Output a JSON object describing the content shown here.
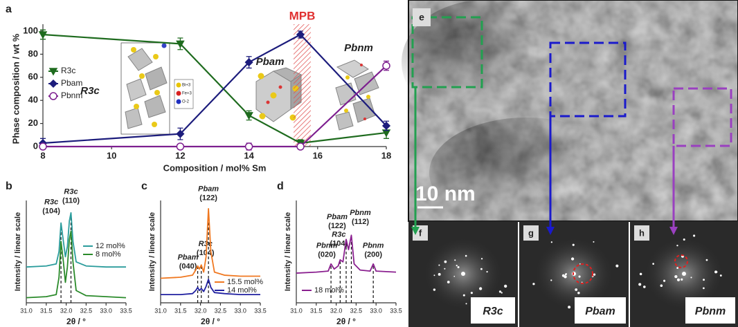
{
  "chart_data": [
    {
      "type": "line",
      "panel": "a",
      "xlabel": "Composition / mol% Sm",
      "ylabel": "Phase composition / wt %",
      "x": [
        8,
        12,
        14,
        15.5,
        18
      ],
      "xlim": [
        8,
        18
      ],
      "xticks": [
        8,
        10,
        12,
        14,
        16,
        18
      ],
      "ylim": [
        0,
        100
      ],
      "yticks": [
        0,
        20,
        40,
        60,
        80,
        100
      ],
      "grid": false,
      "legend": "center left",
      "series": [
        {
          "name": "R3c",
          "color": "#1e6b1e",
          "marker": "triangle",
          "values": [
            97,
            89,
            27,
            3,
            12
          ],
          "errors": [
            4,
            5,
            4,
            3,
            5
          ]
        },
        {
          "name": "Pbam",
          "color": "#1c1c7c",
          "marker": "diamond",
          "values": [
            3,
            11,
            73,
            97,
            18
          ],
          "errors": [
            4,
            5,
            5,
            3,
            4
          ]
        },
        {
          "name": "Pbnm",
          "color": "#7d1f8f",
          "marker": "circle",
          "values": [
            0,
            0,
            0,
            0,
            70
          ],
          "errors": [
            2,
            2,
            3,
            2,
            4
          ]
        }
      ],
      "band": {
        "label": "MPB",
        "range": [
          15.3,
          15.8
        ],
        "color": "#e03030"
      },
      "annotations": [
        "R3c",
        "Pbam",
        "Pbnm"
      ],
      "inset_legend": [
        {
          "label": "Bi+3",
          "color": "#e8c400"
        },
        {
          "label": "Fe+3",
          "color": "#d82020"
        },
        {
          "label": "O-2",
          "color": "#2030c0"
        }
      ]
    },
    {
      "type": "line",
      "panel": "b",
      "xlabel": "2θ / °",
      "ylabel": "Intensity / linear scale",
      "x": [
        31.0,
        31.5,
        31.75,
        31.82,
        31.87,
        31.93,
        31.98,
        32.03,
        32.08,
        32.12,
        32.17,
        32.25,
        32.5,
        33.0,
        33.5
      ],
      "xlim": [
        31.0,
        33.5
      ],
      "xticks": [
        {
          "value": 31,
          "label": "31.0"
        },
        31.5,
        {
          "value": 32,
          "label": "32.0"
        },
        32.5,
        {
          "value": 33,
          "label": "33.0"
        },
        33.5
      ],
      "ylim": [
        0,
        100
      ],
      "legend": "center right",
      "series": [
        {
          "name": "12 mol%",
          "color": "#2a9c9c",
          "values": [
            35,
            36,
            38,
            50,
            78,
            60,
            45,
            55,
            80,
            88,
            60,
            40,
            36,
            35,
            35
          ]
        },
        {
          "name": "8 mol%",
          "color": "#2a8a2a",
          "values": [
            5,
            6,
            8,
            25,
            60,
            40,
            20,
            35,
            62,
            70,
            40,
            12,
            7,
            6,
            5
          ]
        }
      ],
      "peaks": [
        {
          "x": 31.87,
          "phase": "R3c",
          "hkl": "(104)"
        },
        {
          "x": 32.12,
          "phase": "R3c",
          "hkl": "(110)"
        }
      ]
    },
    {
      "type": "line",
      "panel": "c",
      "xlabel": "2θ / °",
      "ylabel": "Intensity / linear scale",
      "x": [
        31.0,
        31.5,
        31.8,
        31.88,
        31.93,
        31.97,
        32.02,
        32.08,
        32.14,
        32.2,
        32.26,
        32.35,
        32.6,
        33.0,
        33.5
      ],
      "xlim": [
        31.0,
        33.5
      ],
      "xticks": [
        {
          "value": 31,
          "label": "31.0"
        },
        31.5,
        {
          "value": 32,
          "label": "32.0"
        },
        32.5,
        {
          "value": 33,
          "label": "33.0"
        },
        33.5
      ],
      "ylim": [
        0,
        100
      ],
      "legend": "lower right",
      "series": [
        {
          "name": "15.5 mol%",
          "color": "#f07820",
          "values": [
            24,
            25,
            27,
            32,
            36,
            33,
            37,
            30,
            45,
            92,
            50,
            30,
            27,
            26,
            26
          ]
        },
        {
          "name": "14 mol%",
          "color": "#2020a0",
          "values": [
            8,
            8,
            9,
            12,
            15,
            12,
            14,
            11,
            16,
            23,
            15,
            10,
            9,
            8,
            8
          ]
        }
      ],
      "peaks": [
        {
          "x": 31.93,
          "phase": "Pbam",
          "hkl": "(040)"
        },
        {
          "x": 32.02,
          "phase": "R3c",
          "hkl": "(104)"
        },
        {
          "x": 32.2,
          "phase": "Pbam",
          "hkl": "(122)"
        }
      ]
    },
    {
      "type": "line",
      "panel": "d",
      "xlabel": "2θ / °",
      "ylabel": "Intensity / linear scale",
      "x": [
        31.0,
        31.5,
        31.8,
        31.87,
        31.95,
        32.05,
        32.1,
        32.17,
        32.25,
        32.31,
        32.38,
        32.45,
        32.6,
        32.85,
        32.93,
        33.0,
        33.5
      ],
      "xlim": [
        31.0,
        33.5
      ],
      "xticks": [
        {
          "value": 31,
          "label": "31.0"
        },
        31.5,
        {
          "value": 32,
          "label": "32.0"
        },
        32.5,
        {
          "value": 33,
          "label": "33.0"
        },
        33.5
      ],
      "ylim": [
        0,
        100
      ],
      "legend": "lower left",
      "series": [
        {
          "name": "18 mol%",
          "color": "#8a1f8f",
          "values": [
            29,
            30,
            31,
            38,
            33,
            36,
            42,
            40,
            62,
            52,
            66,
            38,
            32,
            31,
            38,
            31,
            30
          ]
        }
      ],
      "peaks": [
        {
          "x": 31.87,
          "phase": "Pbnm",
          "hkl": "(020)"
        },
        {
          "x": 32.1,
          "phase": "R3c",
          "hkl": "(104)"
        },
        {
          "x": 32.25,
          "phase": "Pbam",
          "hkl": "(122)"
        },
        {
          "x": 32.38,
          "phase": "Pbnm",
          "hkl": "(112)"
        },
        {
          "x": 32.93,
          "phase": "Pbnm",
          "hkl": "(200)"
        }
      ]
    }
  ],
  "micrographs": {
    "main": {
      "label": "e",
      "scale": "10 nm"
    },
    "ffts": [
      {
        "label": "f",
        "phase": "R3c"
      },
      {
        "label": "g",
        "phase": "Pbam"
      },
      {
        "label": "h",
        "phase": "Pbnm"
      }
    ]
  }
}
